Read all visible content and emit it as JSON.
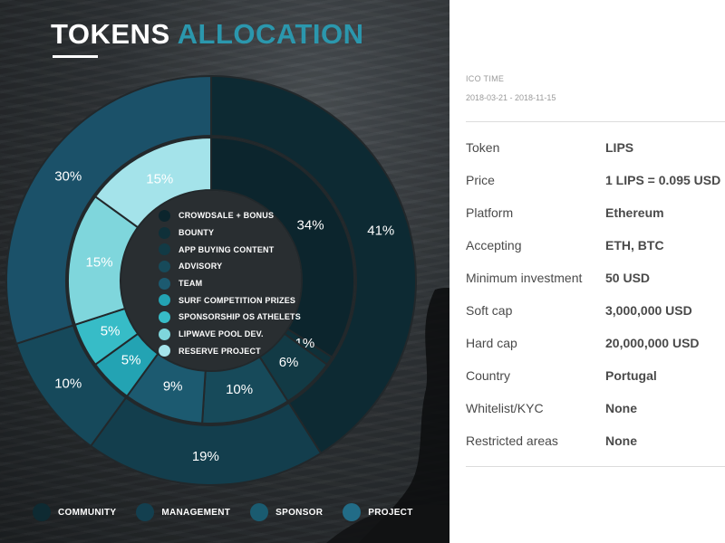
{
  "title": {
    "word1": "TOKENS",
    "word2": "ALLOCATION"
  },
  "colors": {
    "community": "#0f2a33",
    "management": "#133f4f",
    "sponsor": "#1a5b70",
    "project": "#226c87",
    "accent": "#2b97ad"
  },
  "chart_data": {
    "type": "pie",
    "outer_ring": {
      "slices": [
        {
          "category": "COMMUNITY",
          "value": 41,
          "label": "41%",
          "color": "#0d2a33"
        },
        {
          "category": "MANAGEMENT",
          "value": 19,
          "label": "19%",
          "color": "#133e4d"
        },
        {
          "category": "SPONSOR",
          "value": 10,
          "label": "10%",
          "color": "#16495b"
        },
        {
          "category": "PROJECT",
          "value": 30,
          "label": "30%",
          "color": "#1b5169"
        }
      ]
    },
    "inner_ring": {
      "slices": [
        {
          "category": "CROWDSALE + BONUS",
          "value": 34,
          "label": "34%",
          "color": "#0c252d"
        },
        {
          "category": "BOUNTY",
          "value": 1,
          "label": "1%",
          "color": "#0f3039"
        },
        {
          "category": "APP BUYING CONTENT",
          "value": 6,
          "label": "6%",
          "color": "#123a45"
        },
        {
          "category": "ADVISORY",
          "value": 10,
          "label": "10%",
          "color": "#174a5a"
        },
        {
          "category": "TEAM",
          "value": 9,
          "label": "9%",
          "color": "#1c5a70"
        },
        {
          "category": "SURF COMPETITION PRIZES",
          "value": 5,
          "label": "5%",
          "color": "#23a3b3"
        },
        {
          "category": "SPONSORSHIP OS ATHELETS",
          "value": 5,
          "label": "5%",
          "color": "#37bcc7"
        },
        {
          "category": "LIPWAVE POOL DEV.",
          "value": 15,
          "label": "15%",
          "color": "#7fd6dc"
        },
        {
          "category": "RESERVE PROJECT",
          "value": 15,
          "label": "15%",
          "color": "#a4e3ea"
        }
      ]
    },
    "center_legend": [
      {
        "label": "CROWDSALE + BONUS",
        "color": "#0c252d"
      },
      {
        "label": "BOUNTY",
        "color": "#0f3039"
      },
      {
        "label": "APP BUYING CONTENT",
        "color": "#123a45"
      },
      {
        "label": "ADVISORY",
        "color": "#174a5a"
      },
      {
        "label": "TEAM",
        "color": "#1c5a70"
      },
      {
        "label": "SURF COMPETITION PRIZES",
        "color": "#23a3b3"
      },
      {
        "label": "SPONSORSHIP OS ATHELETS",
        "color": "#37bcc7"
      },
      {
        "label": "LIPWAVE POOL DEV.",
        "color": "#7fd6dc"
      },
      {
        "label": "RESERVE PROJECT",
        "color": "#a4e3ea"
      }
    ],
    "legend": [
      {
        "label": "COMMUNITY",
        "color": "#0e2a32"
      },
      {
        "label": "MANAGEMENT",
        "color": "#133f4f"
      },
      {
        "label": "SPONSOR",
        "color": "#1a5b70"
      },
      {
        "label": "PROJECT",
        "color": "#226c87"
      }
    ]
  },
  "ico": {
    "label": "ICO TIME",
    "dates": "2018-03-21 - 2018-11-15"
  },
  "details": [
    {
      "key": "Token",
      "value": "LIPS"
    },
    {
      "key": "Price",
      "value": "1 LIPS = 0.095 USD"
    },
    {
      "key": "Platform",
      "value": "Ethereum"
    },
    {
      "key": "Accepting",
      "value": "ETH, BTC"
    },
    {
      "key": "Minimum investment",
      "value": "50 USD"
    },
    {
      "key": "Soft cap",
      "value": "3,000,000 USD"
    },
    {
      "key": "Hard cap",
      "value": "20,000,000 USD"
    },
    {
      "key": "Country",
      "value": "Portugal"
    },
    {
      "key": "Whitelist/KYC",
      "value": "None"
    },
    {
      "key": "Restricted areas",
      "value": "None"
    }
  ]
}
